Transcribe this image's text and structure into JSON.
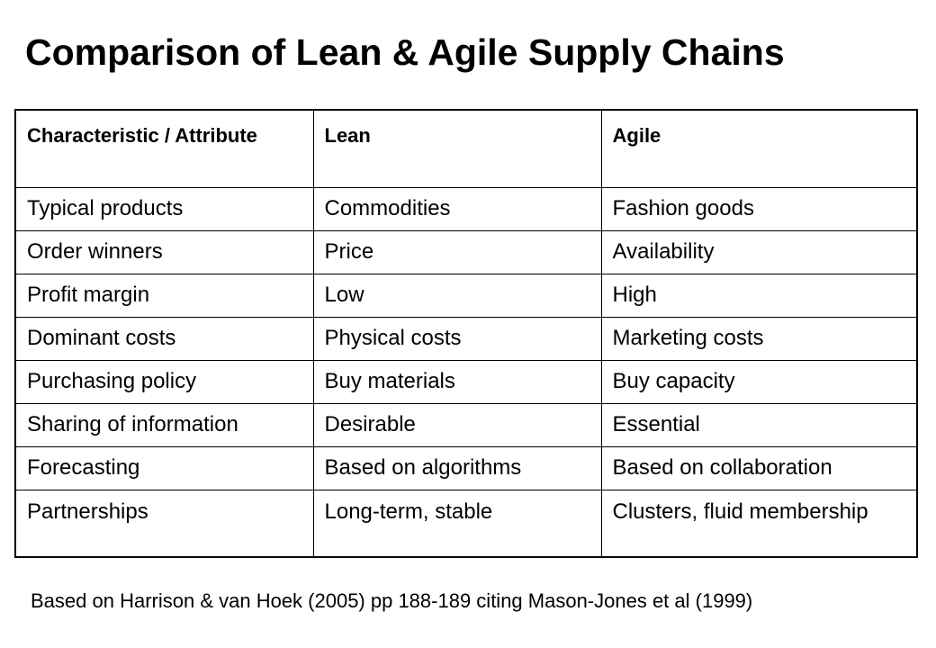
{
  "title": "Comparison of Lean & Agile Supply Chains",
  "table": {
    "headers": [
      "Characteristic / Attribute",
      "Lean",
      "Agile"
    ],
    "rows": [
      [
        "Typical products",
        "Commodities",
        "Fashion goods"
      ],
      [
        "Order winners",
        "Price",
        "Availability"
      ],
      [
        "Profit margin",
        "Low",
        "High"
      ],
      [
        "Dominant costs",
        "Physical costs",
        "Marketing costs"
      ],
      [
        "Purchasing policy",
        "Buy materials",
        "Buy capacity"
      ],
      [
        "Sharing of information",
        "Desirable",
        "Essential"
      ],
      [
        "Forecasting",
        "Based on algorithms",
        "Based on collaboration"
      ],
      [
        "Partnerships",
        "Long-term, stable",
        "Clusters, fluid membership"
      ]
    ]
  },
  "footnote": "Based on Harrison & van Hoek (2005) pp 188-189 citing Mason-Jones et al (1999)"
}
